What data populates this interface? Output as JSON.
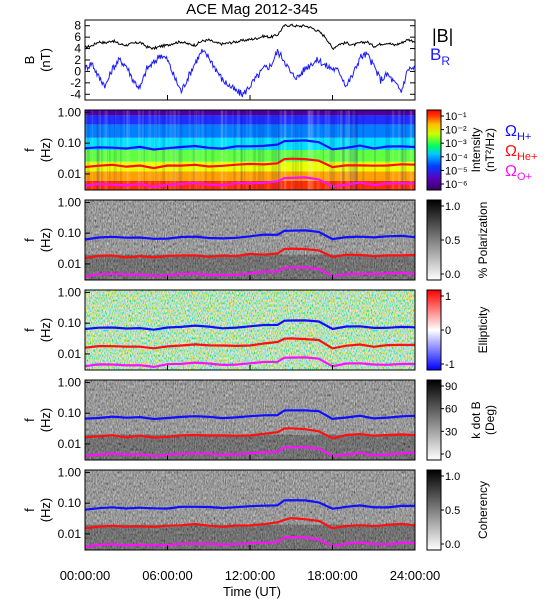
{
  "title": "ACE Mag 2012-345",
  "colors": {
    "h_plus": "#1010ff",
    "he_plus": "#ff1010",
    "o_plus": "#ff10ff",
    "b_total": "#000000",
    "b_r": "#1a1aff"
  },
  "legend": {
    "b_total": "|B|",
    "b_r": "B",
    "b_r_sub": "R",
    "h": "Ω",
    "h_sub": "H+",
    "he": "Ω",
    "he_sub": "He+",
    "o": "Ω",
    "o_sub": "O+"
  },
  "x_axis": {
    "label": "Time (UT)",
    "ticks": [
      "00:00:00",
      "06:00:00",
      "12:00:00",
      "18:00:00",
      "24:00:00"
    ],
    "range_hours": [
      0,
      24
    ]
  },
  "chart_data": [
    {
      "type": "line",
      "id": "b-panel",
      "ylabel": "B",
      "yunit": "(nT)",
      "ylim": [
        -5,
        9
      ],
      "yticks": [
        "-4",
        "-2",
        "0",
        "2",
        "4",
        "6",
        "8"
      ],
      "series": [
        {
          "name": "|B|",
          "x": [
            0,
            0.5,
            1,
            1.5,
            2,
            2.5,
            3,
            3.5,
            4,
            4.5,
            5,
            5.5,
            6,
            6.5,
            7,
            7.5,
            8,
            8.5,
            9,
            9.5,
            10,
            10.5,
            11,
            11.5,
            12,
            12.5,
            13,
            13.5,
            14,
            14.5,
            15,
            15.5,
            16,
            16.5,
            17,
            17.5,
            18,
            18.5,
            19,
            19.5,
            20,
            20.5,
            21,
            21.5,
            22,
            22.5,
            23,
            23.5,
            24
          ],
          "values": [
            4.2,
            4.5,
            5.2,
            5.0,
            5.4,
            4.8,
            4.6,
            4.9,
            5.1,
            4.3,
            4.0,
            4.4,
            4.6,
            5.0,
            5.2,
            4.8,
            4.6,
            5.3,
            5.5,
            5.0,
            4.8,
            5.0,
            5.2,
            5.4,
            5.6,
            5.8,
            6.2,
            6.0,
            6.4,
            8.0,
            8.1,
            7.9,
            8.0,
            7.6,
            7.0,
            6.0,
            4.0,
            4.8,
            5.0,
            4.6,
            5.0,
            5.2,
            4.4,
            4.8,
            5.0,
            4.6,
            5.0,
            5.6,
            5.2
          ]
        },
        {
          "name": "B",
          "x": [
            0,
            0.5,
            1,
            1.5,
            2,
            2.5,
            3,
            3.5,
            4,
            4.5,
            5,
            5.5,
            6,
            6.5,
            7,
            7.5,
            8,
            8.5,
            9,
            9.5,
            10,
            10.5,
            11,
            11.5,
            12,
            12.5,
            13,
            13.5,
            14,
            14.5,
            15,
            15.5,
            16,
            16.5,
            17,
            17.5,
            18,
            18.5,
            19,
            19.5,
            20,
            20.5,
            21,
            21.5,
            22,
            22.5,
            23,
            23.5,
            24
          ],
          "values": [
            0.5,
            1.5,
            -1.0,
            -2.5,
            0.5,
            2.0,
            1.0,
            -1.5,
            -3.0,
            0.5,
            1.5,
            3.0,
            2.0,
            -1.0,
            -3.5,
            -1.0,
            1.5,
            3.5,
            2.5,
            0.5,
            -1.5,
            -2.5,
            -3.5,
            -4.0,
            -2.5,
            -1.0,
            0.5,
            1.0,
            3.5,
            2.0,
            -0.5,
            -1.0,
            0.5,
            1.5,
            2.0,
            1.0,
            0.5,
            0.0,
            -2.5,
            -0.5,
            2.5,
            3.0,
            1.0,
            -1.5,
            -0.5,
            -2.0,
            -3.5,
            0.5,
            0.5
          ]
        }
      ]
    },
    {
      "type": "heatmap",
      "id": "intensity",
      "ylabel": "f",
      "yunit": "(Hz)",
      "yticks": [
        "1.00",
        "0.10",
        "0.01"
      ],
      "colorbar_label": "Intensity",
      "colorbar_unit": "(nT²/Hz)",
      "colorbar_ticks": [
        "10⁻¹",
        "10⁻²",
        "10⁻³",
        "10⁻⁴",
        "10⁻⁵",
        "10⁻⁶"
      ],
      "colormap": "rainbow"
    },
    {
      "type": "heatmap",
      "id": "polarization",
      "ylabel": "f",
      "yunit": "(Hz)",
      "yticks": [
        "1.00",
        "0.10",
        "0.01"
      ],
      "colorbar_label": "% Polarization",
      "colorbar_ticks": [
        "1.0",
        "0.5",
        "0.0"
      ],
      "colormap": "gray"
    },
    {
      "type": "heatmap",
      "id": "ellipticity",
      "ylabel": "f",
      "yunit": "(Hz)",
      "yticks": [
        "1.00",
        "0.10",
        "0.01"
      ],
      "colorbar_label": "Ellipticity",
      "colorbar_ticks": [
        "1",
        "0",
        "-1"
      ],
      "colormap": "bwr"
    },
    {
      "type": "heatmap",
      "id": "kdotb",
      "ylabel": "f",
      "yunit": "(Hz)",
      "yticks": [
        "1.00",
        "0.10",
        "0.01"
      ],
      "colorbar_label": "k dot B",
      "colorbar_unit": "(Deg)",
      "colorbar_ticks": [
        "90",
        "60",
        "30",
        "0"
      ],
      "colormap": "gray"
    },
    {
      "type": "heatmap",
      "id": "coherency",
      "ylabel": "f",
      "yunit": "(Hz)",
      "yticks": [
        "1.00",
        "0.10",
        "0.01"
      ],
      "colorbar_label": "Coherency",
      "colorbar_ticks": [
        "1.0",
        "0.5",
        "0.0"
      ],
      "colormap": "gray"
    }
  ],
  "gyrofrequency_hz": {
    "x": [
      0,
      1,
      2,
      3,
      4,
      5,
      6,
      7,
      8,
      9,
      10,
      11,
      12,
      13,
      14,
      14.5,
      15,
      16,
      17,
      18,
      19,
      20,
      21,
      22,
      23,
      24
    ],
    "h_plus": [
      0.065,
      0.07,
      0.075,
      0.068,
      0.072,
      0.065,
      0.07,
      0.075,
      0.08,
      0.073,
      0.07,
      0.075,
      0.08,
      0.085,
      0.09,
      0.12,
      0.125,
      0.12,
      0.11,
      0.065,
      0.075,
      0.08,
      0.07,
      0.075,
      0.08,
      0.078
    ],
    "he_plus": [
      0.016,
      0.018,
      0.019,
      0.017,
      0.018,
      0.016,
      0.018,
      0.019,
      0.02,
      0.018,
      0.018,
      0.019,
      0.02,
      0.021,
      0.023,
      0.03,
      0.031,
      0.03,
      0.027,
      0.016,
      0.019,
      0.02,
      0.018,
      0.019,
      0.02,
      0.02
    ],
    "o_plus": [
      0.004,
      0.0045,
      0.0047,
      0.0043,
      0.0045,
      0.004,
      0.0045,
      0.0047,
      0.005,
      0.0046,
      0.0045,
      0.0047,
      0.005,
      0.0053,
      0.0057,
      0.0075,
      0.0078,
      0.0075,
      0.0068,
      0.004,
      0.0047,
      0.005,
      0.0045,
      0.0047,
      0.005,
      0.005
    ]
  }
}
